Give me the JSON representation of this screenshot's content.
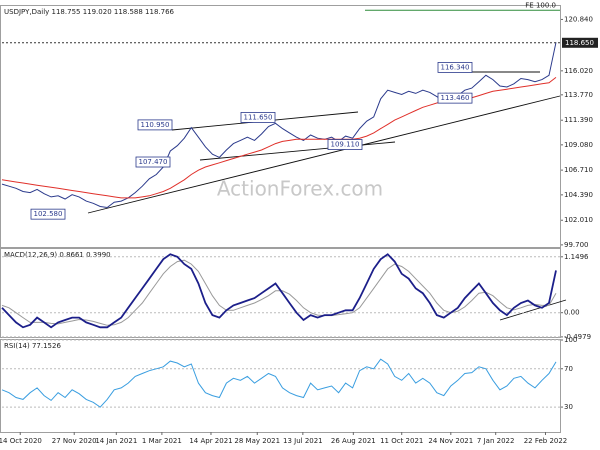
{
  "watermark": "ActionForex.com",
  "chart_data": [
    {
      "type": "line",
      "title": "USDJPY,Daily 118.755 119.020 118.588 118.766",
      "ylim": [
        99.5,
        122.1
      ],
      "xlim": [
        0,
        79
      ],
      "yticks": [
        {
          "value": 99.7,
          "label": "99.700"
        },
        {
          "value": 102.01,
          "label": "102.010"
        },
        {
          "value": 104.39,
          "label": "104.390"
        },
        {
          "value": 106.71,
          "label": "106.710"
        },
        {
          "value": 109.08,
          "label": "109.080"
        },
        {
          "value": 111.39,
          "label": "111.390"
        },
        {
          "value": 113.77,
          "label": "113.770"
        },
        {
          "value": 116.02,
          "label": "116.020"
        },
        {
          "value": 120.84,
          "label": "120.840"
        }
      ],
      "current": {
        "value": 118.65,
        "label": "118.650"
      },
      "target": {
        "value": 121.7,
        "label": "FE 100.0",
        "color": "#2e8b3a"
      },
      "annotations": [
        {
          "value": 102.58,
          "label": "102.580"
        },
        {
          "value": 110.95,
          "label": "110.950"
        },
        {
          "value": 107.47,
          "label": "107.470"
        },
        {
          "value": 111.65,
          "label": "111.650"
        },
        {
          "value": 109.11,
          "label": "109.110"
        },
        {
          "value": 116.34,
          "label": "116.340"
        },
        {
          "value": 113.46,
          "label": "113.460"
        }
      ],
      "series": [
        {
          "color": "#2b3a8c",
          "values": [
            105.4,
            105.2,
            105.0,
            104.7,
            104.6,
            104.9,
            104.5,
            104.2,
            104.3,
            104.0,
            104.4,
            104.2,
            103.8,
            103.6,
            103.3,
            103.2,
            103.7,
            103.8,
            104.1,
            104.6,
            105.2,
            105.9,
            106.3,
            107.0,
            108.5,
            109.0,
            109.7,
            110.7,
            109.8,
            108.9,
            108.2,
            107.9,
            108.6,
            109.2,
            109.5,
            109.8,
            109.5,
            110.1,
            110.8,
            111.1,
            110.6,
            110.2,
            109.8,
            109.5,
            110.0,
            109.7,
            109.6,
            109.8,
            109.4,
            109.9,
            109.7,
            110.6,
            111.3,
            111.7,
            113.4,
            114.2,
            114.0,
            113.8,
            114.1,
            113.9,
            114.2,
            114.0,
            113.6,
            113.2,
            113.5,
            113.7,
            114.2,
            114.4,
            115.0,
            115.6,
            115.2,
            114.6,
            114.5,
            114.8,
            115.3,
            115.2,
            115.0,
            115.2,
            115.6,
            118.7
          ]
        },
        {
          "color": "#e0302a",
          "values": [
            105.8,
            105.7,
            105.6,
            105.5,
            105.4,
            105.3,
            105.2,
            105.1,
            105.0,
            104.9,
            104.8,
            104.7,
            104.6,
            104.5,
            104.4,
            104.3,
            104.2,
            104.1,
            104.1,
            104.1,
            104.2,
            104.3,
            104.5,
            104.7,
            105.0,
            105.4,
            105.8,
            106.3,
            106.7,
            107.0,
            107.2,
            107.4,
            107.6,
            107.8,
            108.0,
            108.2,
            108.4,
            108.6,
            108.9,
            109.2,
            109.4,
            109.5,
            109.6,
            109.6,
            109.6,
            109.6,
            109.6,
            109.6,
            109.6,
            109.6,
            109.6,
            109.7,
            109.9,
            110.2,
            110.6,
            111.0,
            111.4,
            111.7,
            112.0,
            112.3,
            112.6,
            112.8,
            113.0,
            113.1,
            113.2,
            113.3,
            113.4,
            113.5,
            113.7,
            113.9,
            114.1,
            114.2,
            114.3,
            114.4,
            114.5,
            114.6,
            114.7,
            114.8,
            114.9,
            115.4
          ]
        }
      ]
    },
    {
      "type": "line",
      "title": "MACD(12,26,9) 0.8661 0.3990",
      "ylim": [
        -0.5,
        1.31
      ],
      "xlim": [
        0,
        79
      ],
      "yticks": [
        {
          "value": -0.4979,
          "label": "-0.4979"
        },
        {
          "value": 0,
          "label": "0.00"
        },
        {
          "value": 1.1496,
          "label": "1.1496"
        }
      ],
      "series": [
        {
          "color": "#9a9a9a",
          "values": [
            0.15,
            0.1,
            0.0,
            -0.1,
            -0.2,
            -0.2,
            -0.2,
            -0.22,
            -0.23,
            -0.2,
            -0.17,
            -0.14,
            -0.15,
            -0.18,
            -0.22,
            -0.26,
            -0.25,
            -0.2,
            -0.1,
            0.05,
            0.2,
            0.4,
            0.6,
            0.8,
            0.95,
            1.05,
            1.08,
            1.0,
            0.85,
            0.6,
            0.35,
            0.15,
            0.05,
            0.05,
            0.1,
            0.15,
            0.2,
            0.27,
            0.35,
            0.45,
            0.45,
            0.38,
            0.25,
            0.1,
            0.0,
            -0.05,
            -0.06,
            -0.06,
            -0.04,
            -0.02,
            0.0,
            0.1,
            0.3,
            0.5,
            0.7,
            0.9,
            1.0,
            0.95,
            0.85,
            0.7,
            0.55,
            0.4,
            0.2,
            0.05,
            0.0,
            0.03,
            0.12,
            0.25,
            0.4,
            0.42,
            0.35,
            0.22,
            0.1,
            0.06,
            0.1,
            0.15,
            0.17,
            0.15,
            0.15,
            0.4
          ]
        },
        {
          "color": "#1c1f8a",
          "values": [
            0.1,
            -0.05,
            -0.2,
            -0.3,
            -0.25,
            -0.1,
            -0.2,
            -0.3,
            -0.2,
            -0.15,
            -0.1,
            -0.1,
            -0.2,
            -0.25,
            -0.3,
            -0.3,
            -0.2,
            -0.1,
            0.1,
            0.3,
            0.5,
            0.7,
            0.9,
            1.1,
            1.2,
            1.15,
            1.0,
            0.9,
            0.6,
            0.2,
            -0.05,
            -0.1,
            0.05,
            0.15,
            0.2,
            0.25,
            0.3,
            0.4,
            0.5,
            0.6,
            0.4,
            0.2,
            0.0,
            -0.15,
            -0.05,
            -0.1,
            -0.05,
            -0.05,
            0.0,
            0.05,
            0.05,
            0.3,
            0.6,
            0.9,
            1.1,
            1.2,
            1.05,
            0.8,
            0.7,
            0.5,
            0.4,
            0.2,
            -0.05,
            -0.1,
            0.0,
            0.1,
            0.3,
            0.45,
            0.6,
            0.4,
            0.2,
            0.05,
            -0.05,
            0.1,
            0.2,
            0.25,
            0.15,
            0.1,
            0.2,
            0.87
          ]
        }
      ]
    },
    {
      "type": "line",
      "title": "RSI(14) 77.1526",
      "ylim": [
        4,
        100
      ],
      "xlim": [
        0,
        79
      ],
      "yticks": [
        30,
        70,
        100
      ],
      "xticks": [
        {
          "value": 2.6,
          "label": "14 Oct 2020"
        },
        {
          "value": 10.3,
          "label": "27 Nov 2020"
        },
        {
          "value": 16.3,
          "label": "14 Jan 2021"
        },
        {
          "value": 22.8,
          "label": "1 Mar 2021"
        },
        {
          "value": 29.8,
          "label": "14 Apr 2021"
        },
        {
          "value": 36.4,
          "label": "28 May 2021"
        },
        {
          "value": 42.9,
          "label": "13 Jul 2021"
        },
        {
          "value": 50.1,
          "label": "26 Aug 2021"
        },
        {
          "value": 57.0,
          "label": "11 Oct 2021"
        },
        {
          "value": 64.0,
          "label": "24 Nov 2021"
        },
        {
          "value": 70.4,
          "label": "7 Jan 2022"
        },
        {
          "value": 77.5,
          "label": "22 Feb 2022"
        }
      ],
      "series": [
        {
          "color": "#3a9ee0",
          "values": [
            48,
            45,
            40,
            38,
            45,
            50,
            42,
            37,
            45,
            40,
            48,
            44,
            38,
            35,
            30,
            38,
            48,
            50,
            55,
            62,
            65,
            68,
            70,
            72,
            78,
            76,
            72,
            75,
            55,
            45,
            42,
            40,
            55,
            60,
            58,
            62,
            55,
            60,
            65,
            62,
            50,
            45,
            42,
            40,
            55,
            48,
            50,
            52,
            45,
            55,
            50,
            68,
            72,
            70,
            80,
            75,
            62,
            58,
            65,
            55,
            60,
            55,
            45,
            42,
            52,
            58,
            65,
            66,
            72,
            70,
            58,
            48,
            52,
            60,
            62,
            55,
            50,
            58,
            65,
            77.1526
          ]
        }
      ]
    }
  ]
}
